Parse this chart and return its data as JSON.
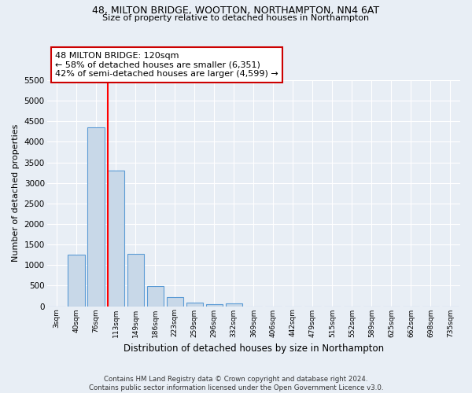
{
  "title_line1": "48, MILTON BRIDGE, WOOTTON, NORTHAMPTON, NN4 6AT",
  "title_line2": "Size of property relative to detached houses in Northampton",
  "xlabel": "Distribution of detached houses by size in Northampton",
  "ylabel": "Number of detached properties",
  "footnote": "Contains HM Land Registry data © Crown copyright and database right 2024.\nContains public sector information licensed under the Open Government Licence v3.0.",
  "bar_labels": [
    "3sqm",
    "40sqm",
    "76sqm",
    "113sqm",
    "149sqm",
    "186sqm",
    "223sqm",
    "259sqm",
    "296sqm",
    "332sqm",
    "369sqm",
    "406sqm",
    "442sqm",
    "479sqm",
    "515sqm",
    "552sqm",
    "589sqm",
    "625sqm",
    "662sqm",
    "698sqm",
    "735sqm"
  ],
  "bar_values": [
    0,
    1260,
    4350,
    3300,
    1270,
    490,
    215,
    95,
    55,
    60,
    0,
    0,
    0,
    0,
    0,
    0,
    0,
    0,
    0,
    0,
    0
  ],
  "bar_color": "#c8d8e8",
  "bar_edge_color": "#5b9bd5",
  "annotation_text": "48 MILTON BRIDGE: 120sqm\n← 58% of detached houses are smaller (6,351)\n42% of semi-detached houses are larger (4,599) →",
  "vline_color": "red",
  "bg_color": "#e8eef5",
  "plot_bg_color": "#e8eef5",
  "grid_color": "#ffffff",
  "annotation_box_color": "#ffffff",
  "annotation_box_edge": "#cc0000",
  "ylim": [
    0,
    5500
  ],
  "yticks": [
    0,
    500,
    1000,
    1500,
    2000,
    2500,
    3000,
    3500,
    4000,
    4500,
    5000,
    5500
  ]
}
